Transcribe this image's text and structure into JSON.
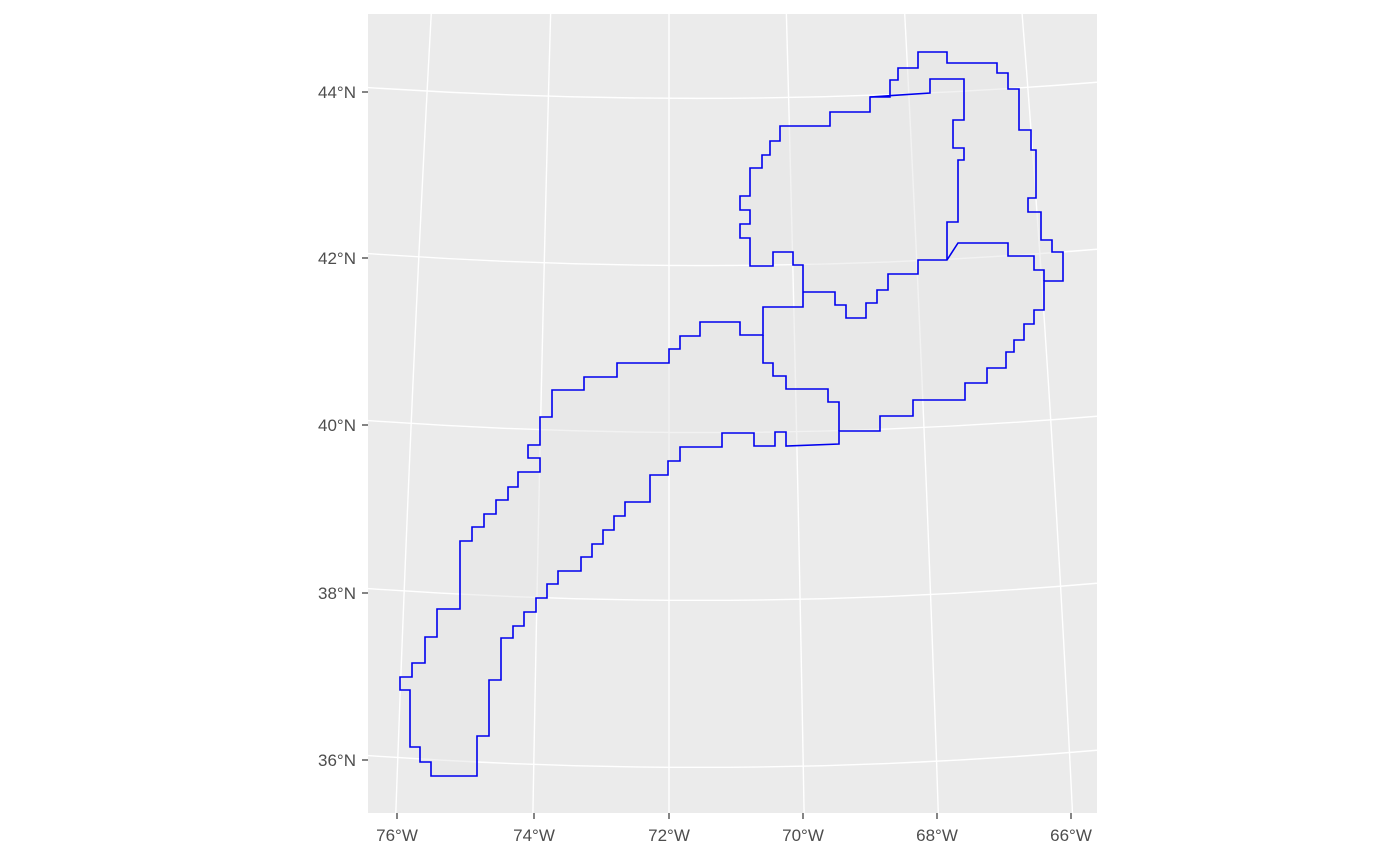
{
  "map": {
    "x_labels": [
      "76°W",
      "74°W",
      "72°W",
      "70°W",
      "68°W",
      "66°W"
    ],
    "y_labels": [
      "44°N",
      "42°N",
      "40°N",
      "38°N",
      "36°N"
    ]
  }
}
